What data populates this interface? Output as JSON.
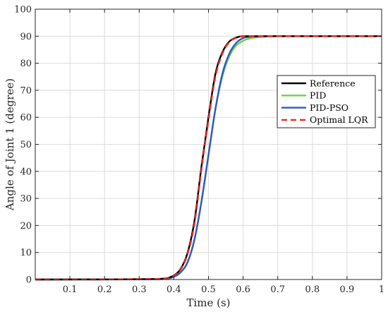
{
  "chart_data": {
    "type": "line",
    "xlabel": "Time (s)",
    "ylabel": "Angle of Joint 1 (degree)",
    "xlim": [
      0,
      1
    ],
    "ylim": [
      0,
      100
    ],
    "grid": true,
    "legend_position": "right",
    "x_tick_labels": [
      "0.1",
      "0.2",
      "0.3",
      "0.4",
      "0.5",
      "0.6",
      "0.7",
      "0.8",
      "0.9",
      "1"
    ],
    "y_tick_labels": [
      "0",
      "10",
      "20",
      "30",
      "40",
      "50",
      "60",
      "70",
      "80",
      "90",
      "100"
    ],
    "x": [
      0,
      0.35,
      0.4,
      0.42,
      0.44,
      0.46,
      0.48,
      0.5,
      0.52,
      0.54,
      0.56,
      0.58,
      0.6,
      0.62,
      0.65,
      0.7,
      0.75,
      1.0
    ],
    "series": [
      {
        "name": "Reference",
        "color": "#000000",
        "style": "solid",
        "values": [
          0,
          0.2,
          1.5,
          4,
          10,
          22,
          42,
          60,
          76,
          84,
          88,
          89.5,
          90,
          90,
          90,
          90,
          90,
          90
        ]
      },
      {
        "name": "PID",
        "color": "#6ccf4a",
        "style": "solid",
        "values": [
          0,
          0.1,
          1,
          2.7,
          6.5,
          15,
          29,
          46,
          63,
          75,
          82.5,
          86.5,
          88.3,
          89.2,
          89.7,
          90,
          90,
          90
        ]
      },
      {
        "name": "PID-PSO",
        "color": "#2f58c4",
        "style": "solid",
        "values": [
          0,
          0.1,
          1,
          2.7,
          6.5,
          15,
          29,
          46,
          63,
          76,
          83.5,
          87.5,
          89.3,
          89.8,
          90,
          90,
          90,
          90
        ]
      },
      {
        "name": "Optimal LQR",
        "color": "#e8281f",
        "style": "dashed",
        "values": [
          0,
          0.2,
          1.4,
          3.8,
          9.6,
          21,
          41,
          59,
          75,
          83.5,
          87.8,
          89.4,
          90,
          90,
          90,
          90,
          90,
          90
        ]
      }
    ]
  }
}
